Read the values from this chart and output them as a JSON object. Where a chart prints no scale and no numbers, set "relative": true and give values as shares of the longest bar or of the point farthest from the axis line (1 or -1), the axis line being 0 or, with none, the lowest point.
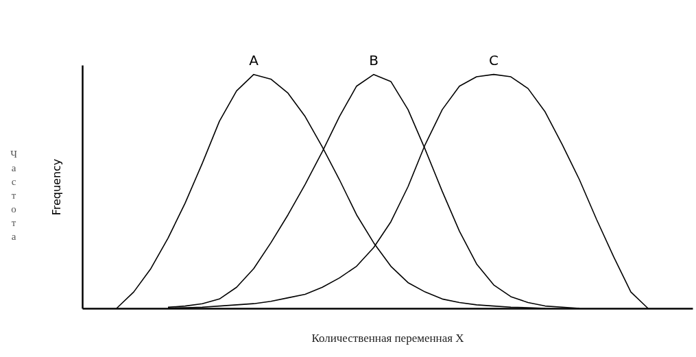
{
  "chart_data": {
    "type": "line",
    "relative": true,
    "xlabel": "Количественная переменная X",
    "ylabel": "Frequency",
    "annotations": [
      "Частота"
    ],
    "grid": false,
    "marker": "none",
    "line_style": "solid",
    "categories": [
      null,
      null,
      null,
      null,
      null,
      null,
      null,
      null,
      null,
      null,
      null,
      null,
      null,
      null,
      null,
      null,
      null,
      null,
      null,
      null,
      null,
      null,
      null,
      null,
      null,
      null,
      null,
      null,
      null,
      null,
      null,
      null,
      null,
      null,
      null,
      null
    ],
    "series": [
      {
        "name": "A",
        "color": "#000000",
        "values": [
          null,
          null,
          0,
          0.07,
          0.17,
          0.3,
          0.45,
          0.62,
          0.8,
          0.93,
          1,
          0.98,
          0.92,
          0.82,
          0.69,
          0.55,
          0.4,
          0.28,
          0.18,
          0.11,
          0.07,
          0.04,
          0.025,
          0.015,
          0.01,
          0.005,
          0.003,
          0,
          null,
          null,
          null,
          null,
          null,
          null,
          null,
          null
        ]
      },
      {
        "name": "B",
        "color": "#000000",
        "values": [
          null,
          null,
          null,
          null,
          null,
          0.005,
          0.01,
          0.02,
          0.04,
          0.09,
          0.17,
          0.28,
          0.4,
          0.53,
          0.67,
          0.82,
          0.95,
          1,
          0.97,
          0.85,
          0.68,
          0.5,
          0.33,
          0.19,
          0.1,
          0.05,
          0.025,
          0.01,
          0.005,
          0,
          null,
          null,
          null,
          null,
          null,
          null
        ]
      },
      {
        "name": "C",
        "color": "#000000",
        "values": [
          null,
          null,
          null,
          null,
          null,
          0.001,
          0.003,
          0.005,
          0.01,
          0.015,
          0.02,
          0.03,
          0.045,
          0.06,
          0.09,
          0.13,
          0.18,
          0.26,
          0.37,
          0.52,
          0.7,
          0.85,
          0.95,
          0.99,
          1,
          0.99,
          0.94,
          0.84,
          0.7,
          0.55,
          0.38,
          0.22,
          0.07,
          0,
          null,
          null
        ]
      }
    ]
  }
}
